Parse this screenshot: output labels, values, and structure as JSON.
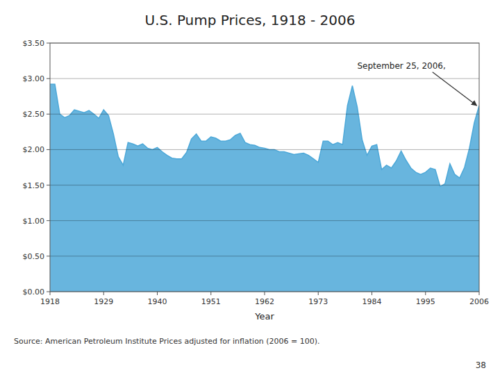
{
  "chart_data": {
    "type": "area",
    "title": "U.S. Pump Prices, 1918 - 2006",
    "x_label": "Year",
    "source": "Source:  American Petroleum Institute  Prices adjusted for inflation (2006 = 100).",
    "page_number": "38",
    "color": "#4da8d8",
    "grid": true,
    "xlim": [
      1918,
      2006
    ],
    "ylim": [
      0.0,
      3.5
    ],
    "xticks": [
      1918,
      1929,
      1940,
      1951,
      1962,
      1973,
      1984,
      1995,
      2006
    ],
    "yticks": [
      {
        "value": 0.0,
        "label": "$0.00"
      },
      {
        "value": 0.5,
        "label": "$0.50"
      },
      {
        "value": 1.0,
        "label": "$1.00"
      },
      {
        "value": 1.5,
        "label": "$1.50"
      },
      {
        "value": 2.0,
        "label": "$2.00"
      },
      {
        "value": 2.5,
        "label": "$2.50"
      },
      {
        "value": 3.0,
        "label": "$3.00"
      },
      {
        "value": 3.5,
        "label": "$3.50"
      }
    ],
    "annotations": [
      {
        "text": "September 25, 2006,",
        "x": 2005.5,
        "y": 2.62,
        "text_x": 1981,
        "text_y": 3.18
      }
    ],
    "x": [
      1918,
      1919,
      1920,
      1921,
      1922,
      1923,
      1924,
      1925,
      1926,
      1927,
      1928,
      1929,
      1930,
      1931,
      1932,
      1933,
      1934,
      1935,
      1936,
      1937,
      1938,
      1939,
      1940,
      1941,
      1942,
      1943,
      1944,
      1945,
      1946,
      1947,
      1948,
      1949,
      1950,
      1951,
      1952,
      1953,
      1954,
      1955,
      1956,
      1957,
      1958,
      1959,
      1960,
      1961,
      1962,
      1963,
      1964,
      1965,
      1966,
      1967,
      1968,
      1969,
      1970,
      1971,
      1972,
      1973,
      1974,
      1975,
      1976,
      1977,
      1978,
      1979,
      1980,
      1981,
      1982,
      1983,
      1984,
      1985,
      1986,
      1987,
      1988,
      1989,
      1990,
      1991,
      1992,
      1993,
      1994,
      1995,
      1996,
      1997,
      1998,
      1999,
      2000,
      2001,
      2002,
      2003,
      2004,
      2005,
      2006
    ],
    "values": [
      2.92,
      2.92,
      2.5,
      2.45,
      2.48,
      2.56,
      2.54,
      2.52,
      2.55,
      2.5,
      2.44,
      2.56,
      2.48,
      2.22,
      1.9,
      1.78,
      2.1,
      2.08,
      2.05,
      2.08,
      2.02,
      2.0,
      2.03,
      1.97,
      1.92,
      1.88,
      1.87,
      1.87,
      1.96,
      2.15,
      2.22,
      2.12,
      2.12,
      2.18,
      2.16,
      2.12,
      2.12,
      2.14,
      2.2,
      2.23,
      2.1,
      2.07,
      2.06,
      2.03,
      2.02,
      2.0,
      2.0,
      1.97,
      1.97,
      1.95,
      1.93,
      1.94,
      1.95,
      1.92,
      1.87,
      1.82,
      2.12,
      2.12,
      2.07,
      2.1,
      2.07,
      2.62,
      2.9,
      2.6,
      2.14,
      1.92,
      2.05,
      2.07,
      1.72,
      1.78,
      1.74,
      1.84,
      1.98,
      1.85,
      1.74,
      1.68,
      1.65,
      1.68,
      1.74,
      1.72,
      1.48,
      1.52,
      1.8,
      1.65,
      1.6,
      1.75,
      2.02,
      2.38,
      2.62
    ]
  }
}
